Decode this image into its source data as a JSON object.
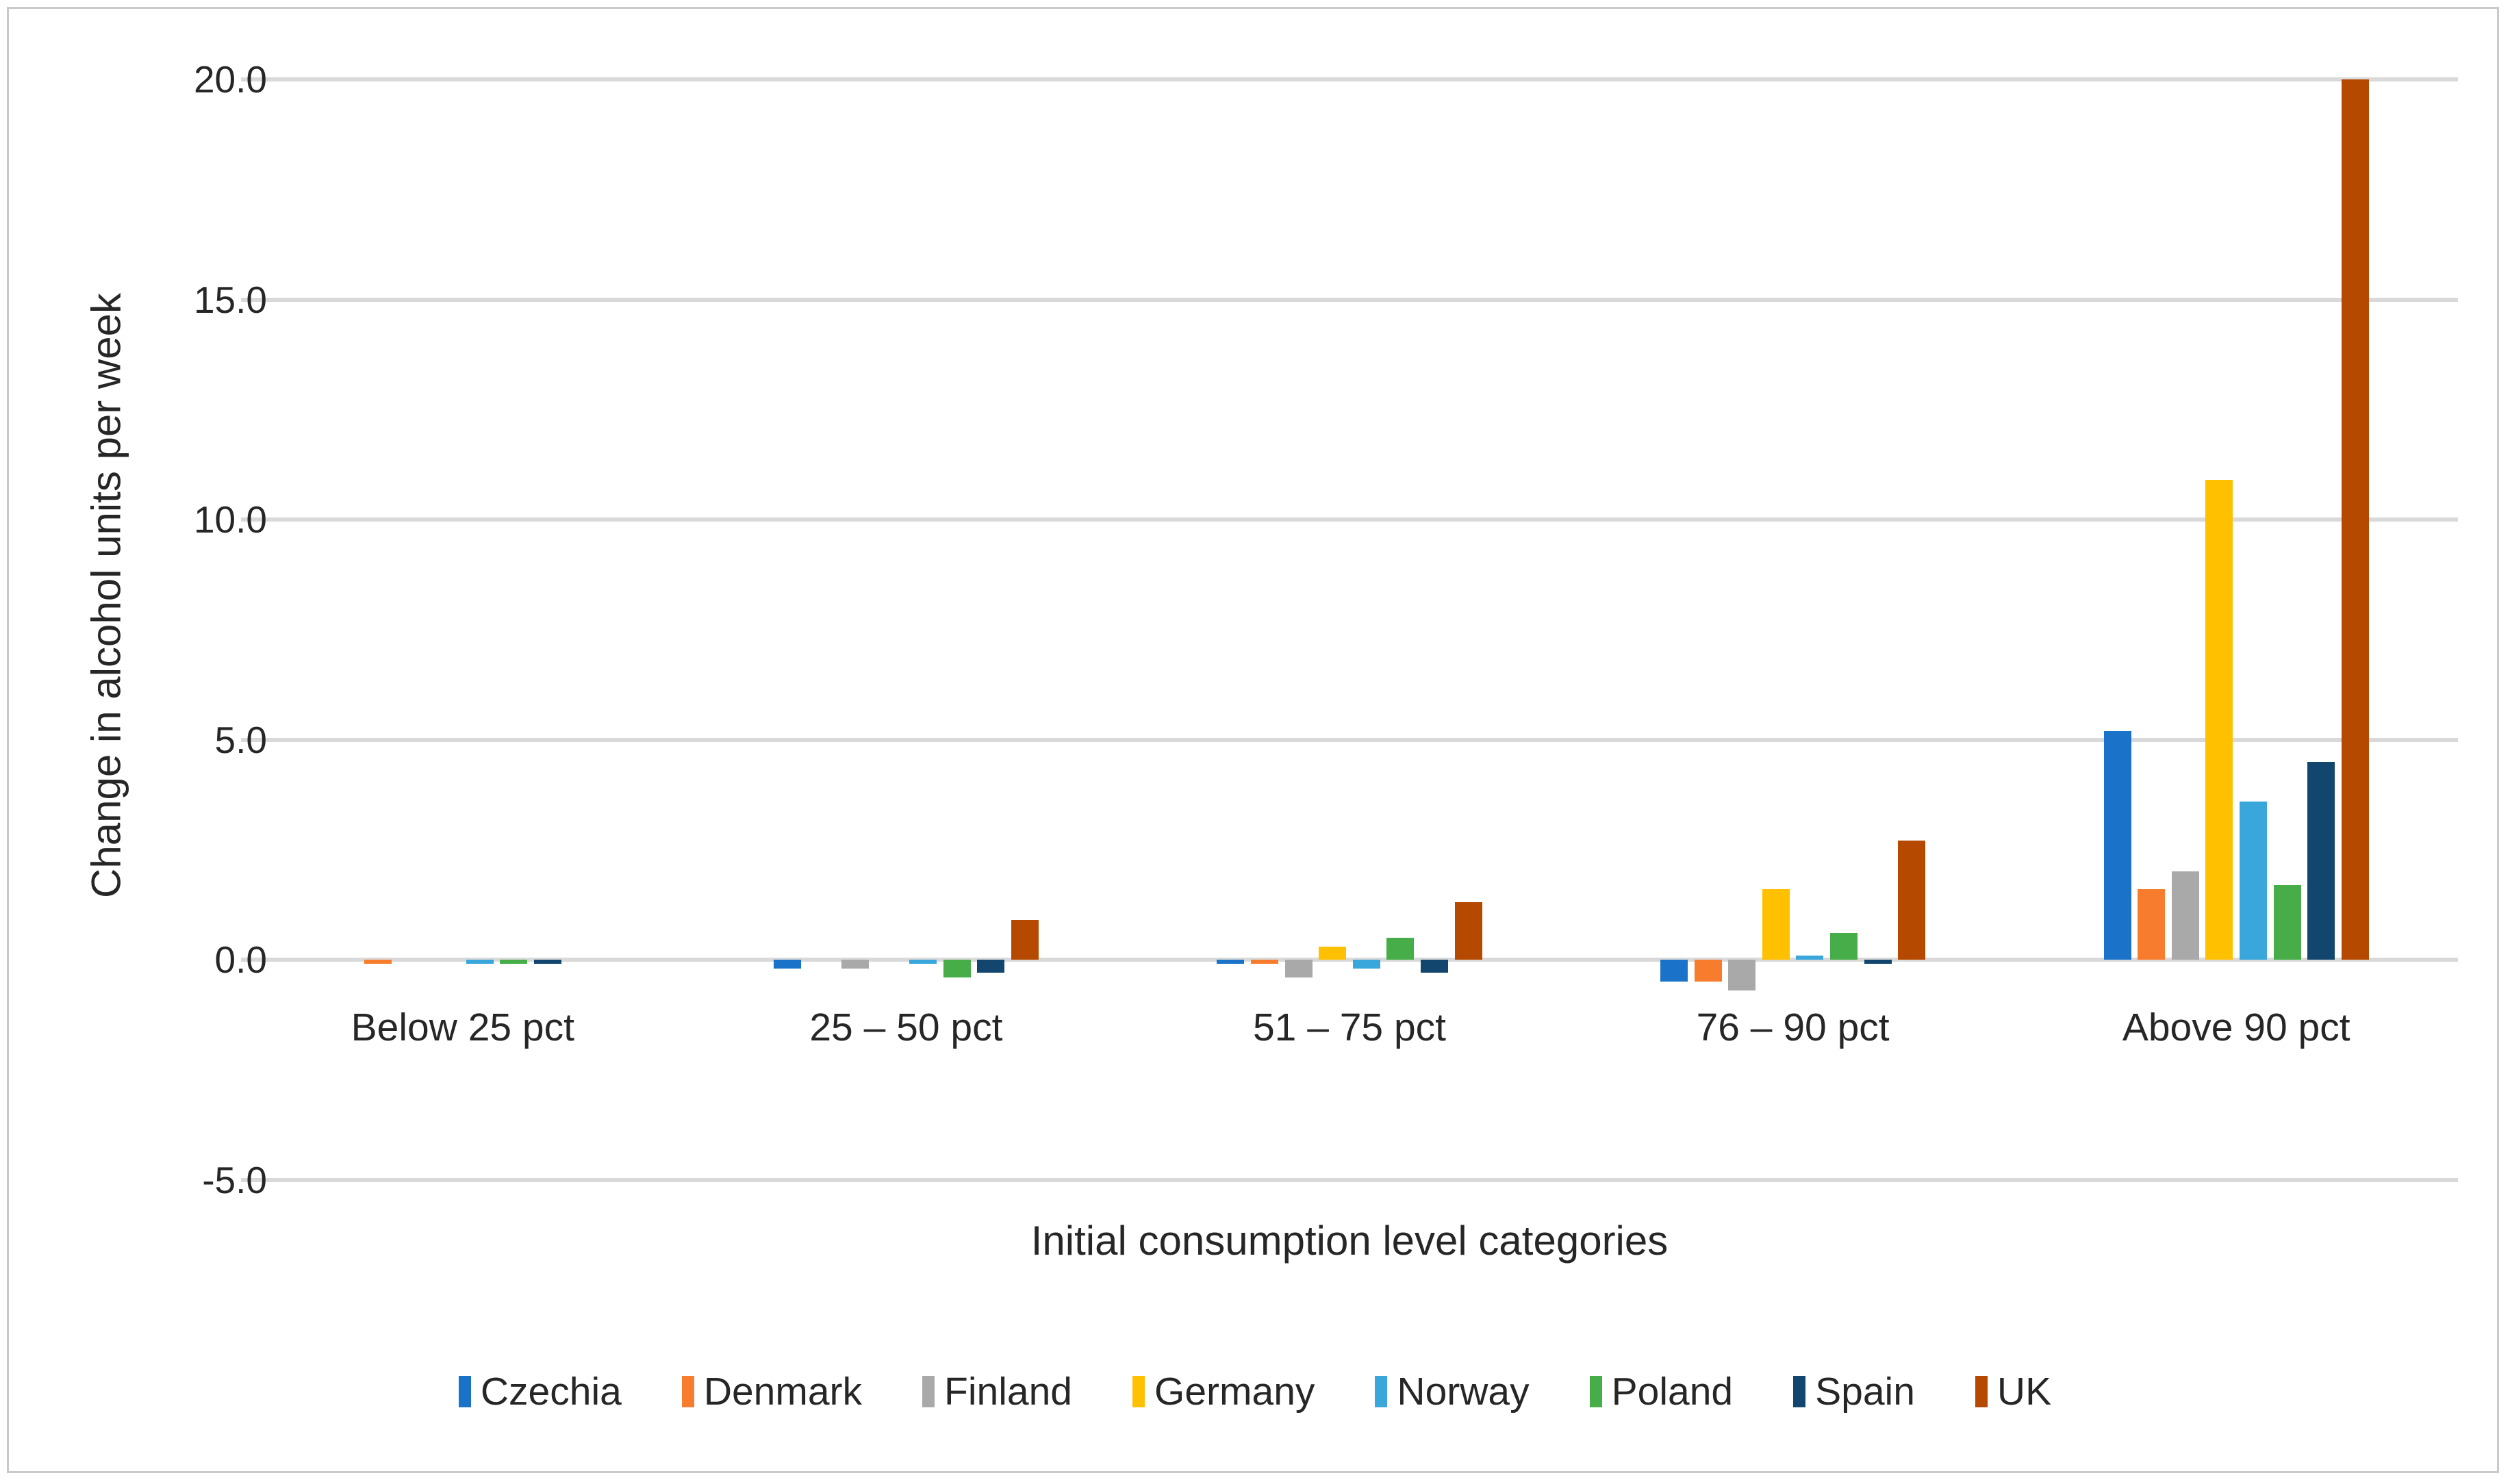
{
  "chart_data": {
    "type": "bar",
    "title": "",
    "xlabel": "Initial consumption level categories",
    "ylabel": "Change in alcohol units per week",
    "categories": [
      "Below 25 pct",
      "25 – 50 pct",
      "51 – 75 pct",
      "76 – 90 pct",
      "Above 90 pct"
    ],
    "series": [
      {
        "name": "Czechia",
        "color": "#1B73C9",
        "values": [
          0.0,
          -0.2,
          -0.1,
          -0.5,
          5.2
        ]
      },
      {
        "name": "Denmark",
        "color": "#F87C2E",
        "values": [
          -0.1,
          0.0,
          -0.1,
          -0.5,
          1.6
        ]
      },
      {
        "name": "Finland",
        "color": "#A9A9A9",
        "values": [
          0.0,
          -0.2,
          -0.4,
          -0.7,
          2.0
        ]
      },
      {
        "name": "Germany",
        "color": "#FFC000",
        "values": [
          0.0,
          0.0,
          0.3,
          1.6,
          10.9
        ]
      },
      {
        "name": "Norway",
        "color": "#3AA7DC",
        "values": [
          -0.1,
          -0.1,
          -0.2,
          0.1,
          3.6
        ]
      },
      {
        "name": "Poland",
        "color": "#47AD49",
        "values": [
          -0.1,
          -0.4,
          0.5,
          0.6,
          1.7
        ]
      },
      {
        "name": "Spain",
        "color": "#12466E",
        "values": [
          -0.1,
          -0.3,
          -0.3,
          -0.1,
          4.5
        ]
      },
      {
        "name": "UK",
        "color": "#B54900",
        "values": [
          0.0,
          0.9,
          1.3,
          2.7,
          20.0
        ]
      }
    ],
    "y_ticks": [
      20.0,
      15.0,
      10.0,
      5.0,
      0.0,
      -5.0
    ],
    "y_tick_labels": [
      "20.0",
      "15.0",
      "10.0",
      "5.0",
      "0.0",
      "-5.0"
    ],
    "ylim": [
      -5.0,
      20.0
    ],
    "grid": true,
    "legend_position": "bottom",
    "colors": {
      "gridline": "#d9d9d9",
      "frame_border": "#c9c9c9",
      "text": "#262626",
      "background": "#ffffff"
    }
  }
}
